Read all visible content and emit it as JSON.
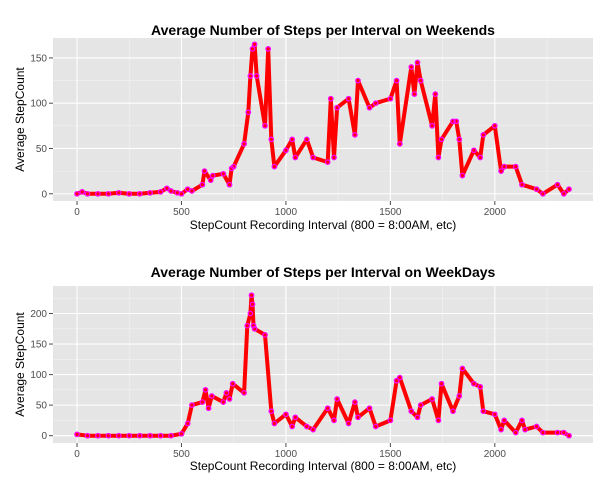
{
  "chart_data": [
    {
      "type": "line",
      "title": "Average Number of Steps per Interval on Weekends",
      "xlabel": "StepCount Recording Interval (800 = 8:00AM, etc)",
      "ylabel": "Average StepCount",
      "xlim": [
        -115,
        2470
      ],
      "ylim": [
        -8,
        172
      ],
      "xticks": [
        0,
        500,
        1000,
        1500,
        2000
      ],
      "yticks": [
        0,
        50,
        100,
        150
      ],
      "grid": true,
      "line_color": "#ff0000",
      "point_color": "#ff00ff",
      "series": [
        {
          "x": [
            0,
            25,
            50,
            100,
            150,
            200,
            250,
            300,
            350,
            400,
            430,
            450,
            480,
            500,
            530,
            550,
            600,
            610,
            640,
            650,
            700,
            730,
            740,
            750,
            800,
            820,
            830,
            840,
            850,
            860,
            900,
            915,
            930,
            945,
            1000,
            1030,
            1045,
            1100,
            1130,
            1200,
            1215,
            1230,
            1245,
            1300,
            1330,
            1345,
            1400,
            1430,
            1500,
            1530,
            1545,
            1600,
            1615,
            1630,
            1645,
            1700,
            1715,
            1730,
            1745,
            1800,
            1815,
            1830,
            1845,
            1900,
            1930,
            1945,
            2000,
            2030,
            2045,
            2100,
            2130,
            2200,
            2230,
            2300,
            2330,
            2355
          ],
          "y": [
            0,
            2,
            0,
            0,
            0,
            1,
            0,
            0,
            1,
            2,
            6,
            3,
            1,
            0,
            5,
            3,
            10,
            25,
            15,
            20,
            22,
            10,
            28,
            30,
            55,
            90,
            130,
            160,
            165,
            130,
            75,
            160,
            60,
            30,
            48,
            60,
            40,
            60,
            40,
            35,
            105,
            40,
            95,
            105,
            65,
            125,
            95,
            100,
            105,
            125,
            55,
            140,
            110,
            145,
            125,
            75,
            110,
            40,
            60,
            80,
            80,
            60,
            20,
            48,
            40,
            65,
            75,
            25,
            30,
            30,
            10,
            5,
            0,
            10,
            0,
            5
          ]
        }
      ]
    },
    {
      "type": "line",
      "title": "Average Number of Steps per Interval on WeekDays",
      "xlabel": "StepCount Recording Interval (800 = 8:00AM, etc)",
      "ylabel": "Average StepCount",
      "xlim": [
        -115,
        2470
      ],
      "ylim": [
        -12,
        245
      ],
      "xticks": [
        0,
        500,
        1000,
        1500,
        2000
      ],
      "yticks": [
        0,
        50,
        100,
        150,
        200
      ],
      "grid": true,
      "line_color": "#ff0000",
      "point_color": "#ff00ff",
      "series": [
        {
          "x": [
            0,
            50,
            100,
            150,
            200,
            250,
            300,
            350,
            400,
            450,
            500,
            530,
            550,
            600,
            615,
            630,
            645,
            700,
            715,
            730,
            745,
            800,
            815,
            830,
            835,
            840,
            845,
            850,
            900,
            930,
            945,
            1000,
            1030,
            1045,
            1100,
            1130,
            1200,
            1230,
            1245,
            1300,
            1330,
            1345,
            1400,
            1430,
            1500,
            1530,
            1545,
            1600,
            1630,
            1645,
            1700,
            1730,
            1745,
            1800,
            1830,
            1845,
            1900,
            1930,
            1945,
            2000,
            2030,
            2045,
            2100,
            2130,
            2145,
            2200,
            2230,
            2300,
            2330,
            2355
          ],
          "y": [
            2,
            0,
            0,
            0,
            0,
            0,
            0,
            0,
            0,
            0,
            3,
            20,
            50,
            55,
            75,
            45,
            65,
            55,
            70,
            60,
            85,
            70,
            180,
            200,
            230,
            215,
            180,
            175,
            165,
            40,
            20,
            35,
            15,
            30,
            15,
            10,
            45,
            25,
            60,
            20,
            55,
            30,
            45,
            15,
            25,
            90,
            95,
            40,
            30,
            50,
            60,
            25,
            85,
            40,
            65,
            110,
            85,
            80,
            40,
            35,
            10,
            25,
            5,
            25,
            10,
            15,
            5,
            5,
            5,
            0
          ]
        }
      ]
    }
  ]
}
